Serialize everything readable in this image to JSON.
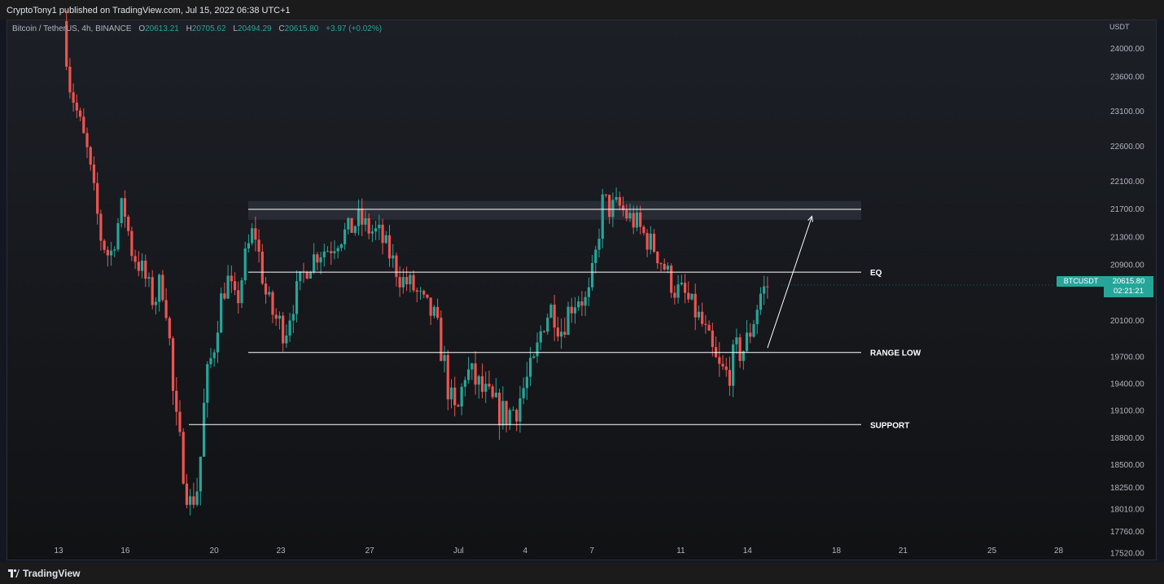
{
  "header": {
    "published_text": "CryptoTony1 published on TradingView.com, Jul 15, 2022 06:38 UTC+1"
  },
  "legend": {
    "symbol": "Bitcoin / TetherUS, 4h, BINANCE",
    "open_label": "O",
    "open": "20613.21",
    "high_label": "H",
    "high": "20705.62",
    "low_label": "L",
    "low": "20494.29",
    "close_label": "C",
    "close": "20615.80",
    "change": "+3.97 (+0.02%)"
  },
  "price_scale": {
    "unit": "USDT"
  },
  "current_price": {
    "ticker": "BTCUSDT",
    "price": "20615.80",
    "countdown": "02:21:21"
  },
  "footer": {
    "logo_text": "TradingView"
  },
  "colors": {
    "up": "#26a69a",
    "down": "#ef5350",
    "background": "#131722",
    "level_line": "#ffffff",
    "zone_fill": "#363a45"
  },
  "chart_data": {
    "type": "candlestick",
    "symbol": "BTCUSDT",
    "timeframe": "4h",
    "y_ticks": [
      24000,
      23600,
      23100,
      22600,
      22100,
      21700,
      21300,
      20900,
      20100,
      19700,
      19400,
      19100,
      18800,
      18500,
      18250,
      18010,
      17760,
      17520
    ],
    "y_tick_labels": [
      "24000.00",
      "23600.00",
      "23100.00",
      "22600.00",
      "22100.00",
      "21700.00",
      "21300.00",
      "20900.00",
      "20100.00",
      "19700.00",
      "19400.00",
      "19100.00",
      "18800.00",
      "18500.00",
      "18250.00",
      "18010.00",
      "17760.00",
      "17520.00"
    ],
    "x_ticks": [
      {
        "label": "13",
        "day": 13
      },
      {
        "label": "16",
        "day": 16
      },
      {
        "label": "20",
        "day": 20
      },
      {
        "label": "23",
        "day": 23
      },
      {
        "label": "27",
        "day": 27
      },
      {
        "label": "Jul",
        "day": 31
      },
      {
        "label": "4",
        "day": 34
      },
      {
        "label": "7",
        "day": 37
      },
      {
        "label": "11",
        "day": 41
      },
      {
        "label": "14",
        "day": 44
      },
      {
        "label": "18",
        "day": 48
      },
      {
        "label": "21",
        "day": 51
      },
      {
        "label": "25",
        "day": 55
      },
      {
        "label": "28",
        "day": 58
      }
    ],
    "path": [
      [
        13.2,
        24400
      ],
      [
        13.5,
        23500
      ],
      [
        13.9,
        23000
      ],
      [
        14.3,
        22500
      ],
      [
        14.9,
        21300
      ],
      [
        15.3,
        21000
      ],
      [
        15.9,
        21800
      ],
      [
        16.3,
        21100
      ],
      [
        16.8,
        20800
      ],
      [
        17.3,
        20350
      ],
      [
        17.6,
        20700
      ],
      [
        17.9,
        20200
      ],
      [
        18.2,
        19100
      ],
      [
        18.6,
        18500
      ],
      [
        18.9,
        18050
      ],
      [
        19.3,
        18300
      ],
      [
        19.6,
        19350
      ],
      [
        20.0,
        19850
      ],
      [
        20.3,
        20400
      ],
      [
        20.6,
        20700
      ],
      [
        21.0,
        20300
      ],
      [
        21.4,
        21000
      ],
      [
        21.8,
        21450
      ],
      [
        22.3,
        20500
      ],
      [
        22.7,
        20150
      ],
      [
        23.2,
        20000
      ],
      [
        23.7,
        20500
      ],
      [
        24.2,
        20900
      ],
      [
        24.7,
        21100
      ],
      [
        25.2,
        21150
      ],
      [
        25.6,
        21300
      ],
      [
        26.1,
        21400
      ],
      [
        26.5,
        21550
      ],
      [
        27.0,
        21400
      ],
      [
        27.4,
        21350
      ],
      [
        27.9,
        21050
      ],
      [
        28.4,
        20700
      ],
      [
        28.9,
        20600
      ],
      [
        29.4,
        20350
      ],
      [
        29.9,
        20150
      ],
      [
        30.3,
        19700
      ],
      [
        30.6,
        19250
      ],
      [
        30.9,
        19000
      ],
      [
        31.3,
        19550
      ],
      [
        31.7,
        19450
      ],
      [
        32.1,
        19300
      ],
      [
        32.6,
        19150
      ],
      [
        33.1,
        19050
      ],
      [
        33.6,
        19150
      ],
      [
        34.0,
        19400
      ],
      [
        34.4,
        19600
      ],
      [
        34.8,
        20100
      ],
      [
        35.2,
        20300
      ],
      [
        35.6,
        20000
      ],
      [
        36.0,
        20300
      ],
      [
        36.4,
        20450
      ],
      [
        36.8,
        20350
      ],
      [
        37.2,
        21100
      ],
      [
        37.5,
        21850
      ],
      [
        37.8,
        21700
      ],
      [
        38.2,
        21750
      ],
      [
        38.6,
        21600
      ],
      [
        39.0,
        21500
      ],
      [
        39.4,
        21300
      ],
      [
        39.8,
        21150
      ],
      [
        40.3,
        20850
      ],
      [
        40.7,
        20550
      ],
      [
        41.1,
        20500
      ],
      [
        41.5,
        20300
      ],
      [
        41.9,
        20100
      ],
      [
        42.3,
        19800
      ],
      [
        42.7,
        19550
      ],
      [
        43.1,
        19500
      ],
      [
        43.5,
        19750
      ],
      [
        43.9,
        19800
      ],
      [
        44.3,
        20150
      ],
      [
        44.6,
        20500
      ],
      [
        44.9,
        20600
      ]
    ],
    "annotations": [
      {
        "label": "",
        "type": "zone",
        "from": 21550,
        "to": 21820
      },
      {
        "label": "",
        "type": "level",
        "price": 21700
      },
      {
        "label": "EQ",
        "type": "level",
        "price": 20800
      },
      {
        "label": "RANGE LOW",
        "type": "level",
        "price": 19750
      },
      {
        "label": "SUPPORT",
        "type": "level",
        "price": 18950
      }
    ],
    "projection": {
      "from": [
        44.9,
        19800
      ],
      "to": [
        46.9,
        21600
      ]
    }
  }
}
